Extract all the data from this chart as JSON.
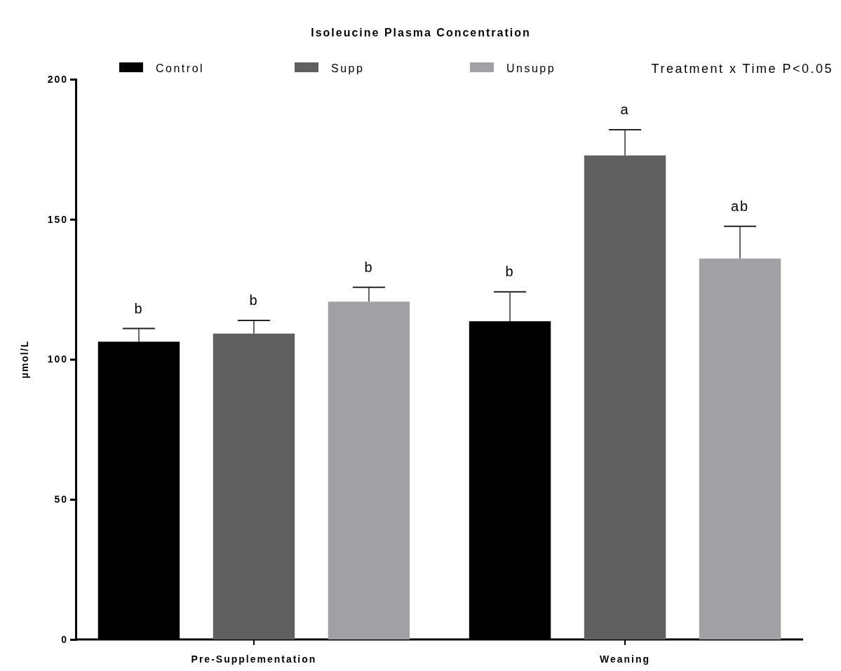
{
  "chart_data": {
    "type": "bar",
    "title": "Isoleucine Plasma Concentration",
    "ylabel": "µmol/L",
    "categories": [
      "Pre-Supplementation",
      "Weaning"
    ],
    "series": [
      {
        "name": "Control",
        "color": "#000000",
        "values": [
          106.3,
          113.6
        ],
        "errors": [
          4.7,
          10.5
        ],
        "value_labels": [
          "b",
          "b"
        ]
      },
      {
        "name": "Supp",
        "color": "#606060",
        "values": [
          109.2,
          172.8
        ],
        "errors": [
          4.7,
          9.2
        ],
        "value_labels": [
          "b",
          "a"
        ]
      },
      {
        "name": "Unsupp",
        "color": "#a1a0a5",
        "values": [
          120.6,
          136.0
        ],
        "errors": [
          5.1,
          11.5
        ],
        "value_labels": [
          "b",
          "ab"
        ]
      }
    ],
    "ylim": [
      0,
      200
    ],
    "yticks": [
      0,
      50,
      100,
      150,
      200
    ],
    "grid": false,
    "legend": "top",
    "annotations": [
      "Treatment x Time P<0.05"
    ]
  }
}
